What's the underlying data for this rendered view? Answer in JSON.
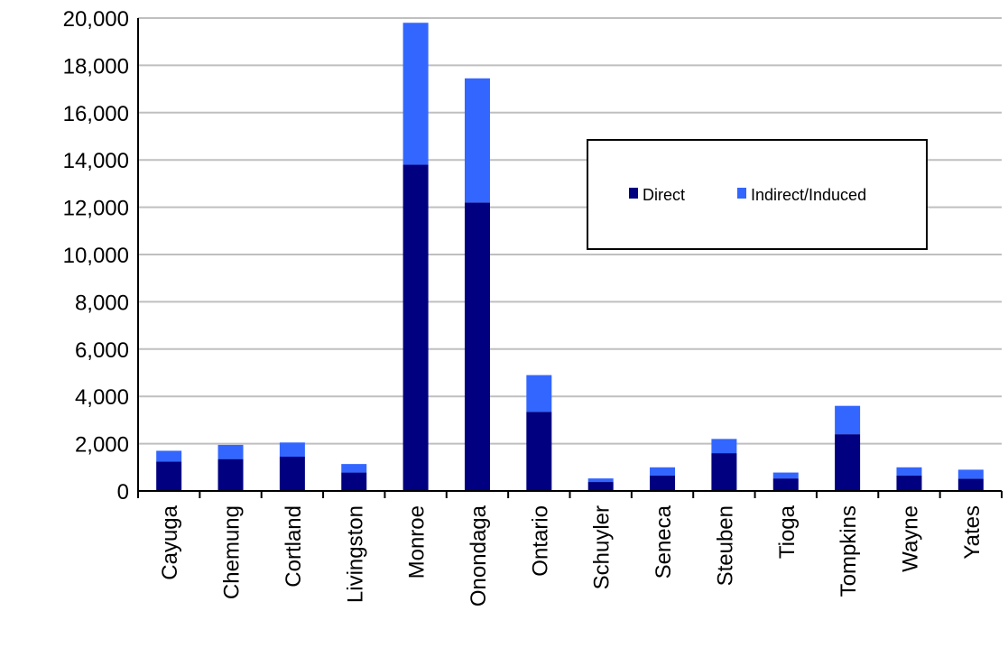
{
  "chart_data": {
    "type": "bar",
    "stacked": true,
    "categories": [
      "Cayuga",
      "Chemung",
      "Cortland",
      "Livingston",
      "Monroe",
      "Onondaga",
      "Ontario",
      "Schuyler",
      "Seneca",
      "Steuben",
      "Tioga",
      "Tompkins",
      "Wayne",
      "Yates"
    ],
    "series": [
      {
        "name": "Direct",
        "color": "#000080",
        "values": [
          1250,
          1350,
          1450,
          780,
          13800,
          12200,
          3350,
          380,
          650,
          1600,
          530,
          2400,
          650,
          520
        ]
      },
      {
        "name": "Indirect/Induced",
        "color": "#3366FF",
        "values": [
          450,
          600,
          600,
          360,
          6000,
          5250,
          1550,
          150,
          350,
          600,
          250,
          1200,
          350,
          380
        ]
      }
    ],
    "yticks": [
      "0",
      "2,000",
      "4,000",
      "6,000",
      "8,000",
      "10,000",
      "12,000",
      "14,000",
      "16,000",
      "18,000",
      "20,000"
    ],
    "ylim": [
      0,
      20000
    ],
    "title": "",
    "xlabel": "",
    "ylabel": "",
    "grid": true,
    "legend_position": "top-right"
  }
}
